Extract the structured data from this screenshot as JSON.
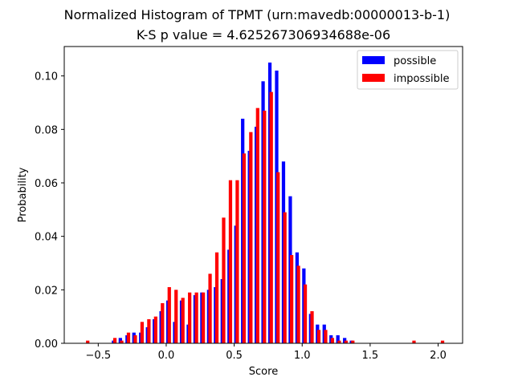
{
  "chart_data": {
    "type": "bar",
    "title": "Normalized Histogram of TPMT (urn:mavedb:00000013-b-1)",
    "subtitle": "K-S p value = 4.625267306934688e-06",
    "xlabel": "Score",
    "ylabel": "Probability",
    "xlim": [
      -0.75,
      2.18
    ],
    "ylim": [
      0,
      0.111
    ],
    "xticks": [
      "−0.5",
      "0.0",
      "0.5",
      "1.0",
      "1.5",
      "2.0"
    ],
    "yticks": [
      "0.00",
      "0.02",
      "0.04",
      "0.06",
      "0.08",
      "0.10"
    ],
    "bin_width": 0.05,
    "bar_width": 0.025,
    "legend_position": "upper right",
    "colors": {
      "possible": "#0000ff",
      "impossible": "#ff0000"
    },
    "series": [
      {
        "name": "possible",
        "color": "#0000ff",
        "x": [
          -0.4,
          -0.35,
          -0.3,
          -0.25,
          -0.2,
          -0.15,
          -0.1,
          -0.05,
          0.0,
          0.05,
          0.1,
          0.15,
          0.2,
          0.25,
          0.3,
          0.35,
          0.4,
          0.45,
          0.5,
          0.55,
          0.6,
          0.65,
          0.7,
          0.75,
          0.8,
          0.85,
          0.9,
          0.95,
          1.0,
          1.05,
          1.1,
          1.15,
          1.2,
          1.25,
          1.3,
          1.35,
          1.4,
          1.45,
          1.5,
          1.55,
          1.6,
          1.65
        ],
        "y": [
          0.001,
          0.002,
          0.003,
          0.004,
          0.004,
          0.006,
          0.009,
          0.012,
          0.016,
          0.008,
          0.016,
          0.007,
          0.018,
          0.019,
          0.02,
          0.021,
          0.024,
          0.035,
          0.044,
          0.084,
          0.072,
          0.081,
          0.098,
          0.105,
          0.102,
          0.068,
          0.055,
          0.034,
          0.028,
          0.011,
          0.007,
          0.007,
          0.003,
          0.003,
          0.002,
          0.001,
          0.0,
          0.0,
          0.0,
          0.0,
          0.0,
          0.0
        ]
      },
      {
        "name": "impossible",
        "color": "#ff0000",
        "x": [
          -0.59,
          -0.39,
          -0.34,
          -0.29,
          -0.24,
          -0.19,
          -0.14,
          -0.09,
          -0.04,
          0.01,
          0.06,
          0.11,
          0.16,
          0.21,
          0.26,
          0.31,
          0.36,
          0.41,
          0.46,
          0.51,
          0.56,
          0.61,
          0.66,
          0.71,
          0.76,
          0.81,
          0.86,
          0.91,
          0.96,
          1.01,
          1.06,
          1.11,
          1.16,
          1.21,
          1.26,
          1.31,
          1.36,
          1.41,
          1.46,
          1.51,
          1.56,
          1.61,
          1.66,
          1.71,
          1.76,
          1.81,
          2.02
        ],
        "y": [
          0.001,
          0.002,
          0.001,
          0.004,
          0.003,
          0.008,
          0.009,
          0.01,
          0.015,
          0.021,
          0.02,
          0.017,
          0.019,
          0.019,
          0.019,
          0.026,
          0.034,
          0.047,
          0.061,
          0.061,
          0.071,
          0.079,
          0.088,
          0.087,
          0.094,
          0.064,
          0.049,
          0.033,
          0.029,
          0.022,
          0.012,
          0.005,
          0.005,
          0.002,
          0.001,
          0.001,
          0.001,
          0.0,
          0.0,
          0.0,
          0.0,
          0.0,
          0.0,
          0.0,
          0.0,
          0.001,
          0.001
        ]
      }
    ]
  }
}
